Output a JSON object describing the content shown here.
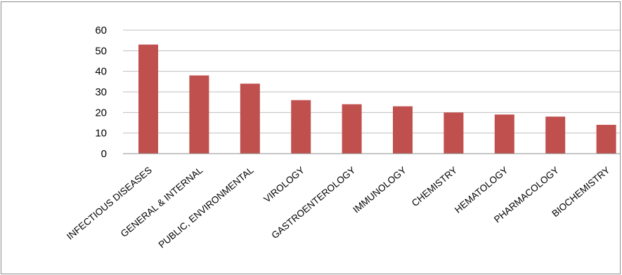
{
  "chart_data": {
    "type": "bar",
    "title": "",
    "xlabel": "",
    "ylabel": "",
    "categories": [
      "INFECTIOUS DISEASES",
      "GENERAL & INTERNAL",
      "PUBLIC, ENVIRONMENTAL",
      "VIROLOGY",
      "GASTROENTEROLOGY",
      "IMMUNOLOGY",
      "CHEMISTRY",
      "HEMATOLOGY",
      "PHARMACOLOGY",
      "BIOCHEMISTRY"
    ],
    "values": [
      53,
      38,
      34,
      26,
      24,
      23,
      20,
      19,
      18,
      14
    ],
    "ylim": [
      0,
      60
    ],
    "yticks": [
      0,
      10,
      20,
      30,
      40,
      50,
      60
    ],
    "grid": true,
    "legend": "none",
    "bar_color": "#c0504d"
  }
}
